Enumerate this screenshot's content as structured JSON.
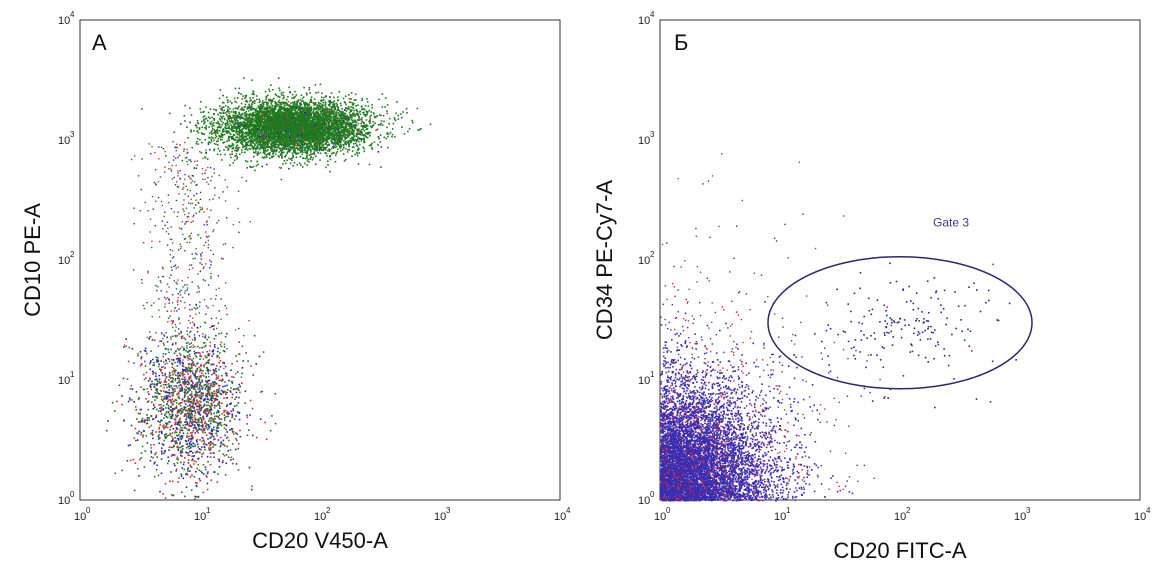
{
  "chart_data": [
    {
      "type": "scatter",
      "panel_label": "А",
      "xlabel": "CD20 V450-A",
      "ylabel": "CD10 PE-A",
      "x_scale": "log",
      "y_scale": "log",
      "xlim": [
        1,
        10000
      ],
      "ylim": [
        1,
        10000
      ],
      "x_ticks": [
        {
          "base": "10",
          "exp": "0"
        },
        {
          "base": "10",
          "exp": "1"
        },
        {
          "base": "10",
          "exp": "2"
        },
        {
          "base": "10",
          "exp": "3"
        },
        {
          "base": "10",
          "exp": "4"
        }
      ],
      "y_ticks": [
        {
          "base": "10",
          "exp": "0"
        },
        {
          "base": "10",
          "exp": "1"
        },
        {
          "base": "10",
          "exp": "2"
        },
        {
          "base": "10",
          "exp": "3"
        },
        {
          "base": "10",
          "exp": "4"
        }
      ],
      "series_colors": [
        "#1f7a1f",
        "#2a2ab0",
        "#c8323c"
      ],
      "populations": [
        {
          "center_x": 60,
          "center_y": 1300,
          "spread_x_decades": 0.55,
          "spread_y_decades": 0.18,
          "count": 6000,
          "color": "#1f7a1f",
          "points_shape": "dense-ellipse"
        },
        {
          "center_x": 8,
          "center_y": 6,
          "spread_x_decades": 0.22,
          "spread_y_decades": 0.3,
          "count": 1800,
          "color": "mixed",
          "points_shape": "cluster"
        }
      ]
    },
    {
      "type": "scatter",
      "panel_label": "Б",
      "xlabel": "CD20 FITC-A",
      "ylabel": "CD34 PE-Cy7-A",
      "x_scale": "log",
      "y_scale": "log",
      "xlim": [
        1,
        10000
      ],
      "ylim": [
        1,
        10000
      ],
      "x_ticks": [
        {
          "base": "10",
          "exp": "0"
        },
        {
          "base": "10",
          "exp": "1"
        },
        {
          "base": "10",
          "exp": "2"
        },
        {
          "base": "10",
          "exp": "3"
        },
        {
          "base": "10",
          "exp": "4"
        }
      ],
      "y_ticks": [
        {
          "base": "10",
          "exp": "0"
        },
        {
          "base": "10",
          "exp": "1"
        },
        {
          "base": "10",
          "exp": "2"
        },
        {
          "base": "10",
          "exp": "3"
        },
        {
          "base": "10",
          "exp": "4"
        }
      ],
      "series_colors": [
        "#3b2db0",
        "#d02a3c"
      ],
      "gate": {
        "label": "Gate 3",
        "center_x": 100,
        "center_y": 30,
        "half_width_decades": 1.1,
        "half_height_decades": 0.55
      },
      "populations": [
        {
          "center_x": 2,
          "center_y": 3,
          "spread_x_decades": 0.35,
          "spread_y_decades": 0.35,
          "count": 7000,
          "color": "#3b2db0",
          "points_shape": "dense-corner"
        },
        {
          "center_x": 110,
          "center_y": 28,
          "spread_x_decades": 0.35,
          "spread_y_decades": 0.22,
          "count": 180,
          "color": "#2a2a8c",
          "points_shape": "gated-cluster"
        }
      ]
    }
  ]
}
